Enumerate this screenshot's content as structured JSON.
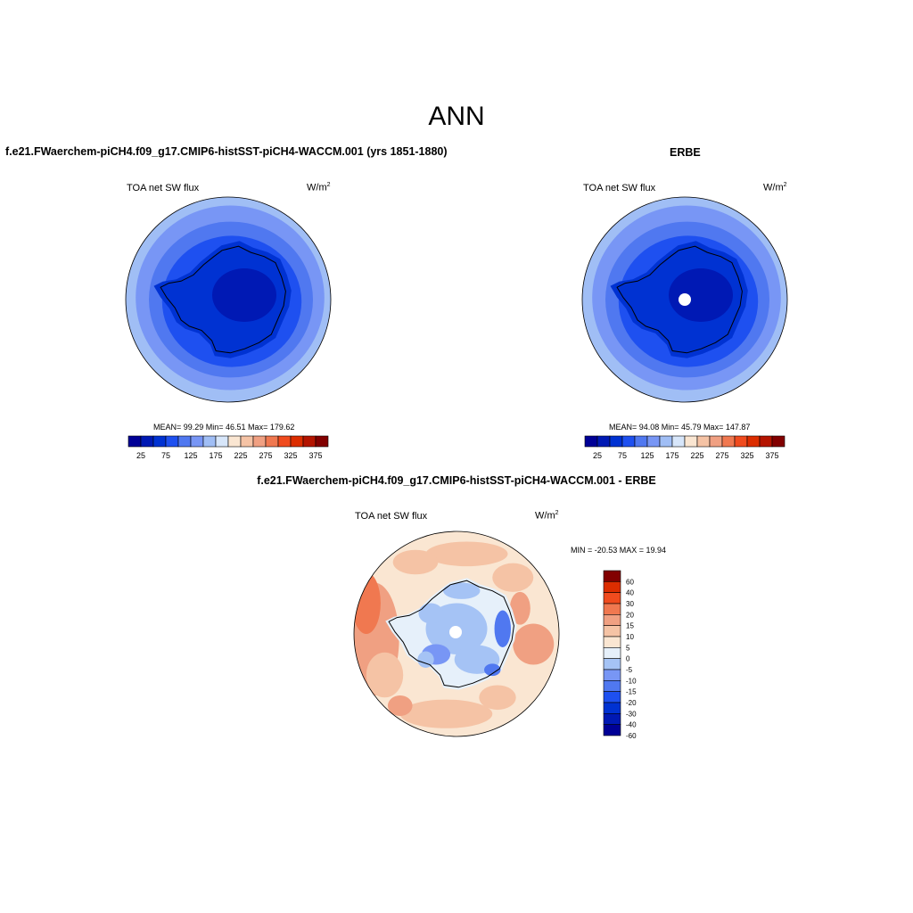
{
  "title": "ANN",
  "colors": {
    "continent_line": "#000000",
    "scale_abs": [
      "#000096",
      "#0019b4",
      "#0032d2",
      "#1e50f0",
      "#5078f0",
      "#7896f5",
      "#a0bef5",
      "#d7e6fa",
      "#fae6d2",
      "#f5c3a5",
      "#f0a082",
      "#f07850",
      "#f04b1e",
      "#dc2d00",
      "#b41400",
      "#820000"
    ],
    "scale_diff": [
      "#000096",
      "#0019b4",
      "#0032d2",
      "#1e50f0",
      "#5078f0",
      "#7896f5",
      "#a5c3f5",
      "#e6f0fa",
      "#fae6d2",
      "#f5c3a5",
      "#f0a082",
      "#f07850",
      "#f04b1e",
      "#dc2d00",
      "#820000"
    ]
  },
  "panels": {
    "model": {
      "title": "f.e21.FWaerchem-piCH4.f09_g17.CMIP6-histSST-piCH4-WACCM.001 (yrs 1851-1880)",
      "variable": "TOA net SW flux",
      "units": "W/m",
      "units_exp": "2",
      "stats": "MEAN=  99.29  Min=  46.51  Max= 179.62"
    },
    "obs": {
      "title": "ERBE",
      "variable": "TOA net SW flux",
      "units": "W/m",
      "units_exp": "2",
      "stats": "MEAN=  94.08  Min=  45.79  Max= 147.87"
    },
    "diff": {
      "title": "f.e21.FWaerchem-piCH4.f09_g17.CMIP6-histSST-piCH4-WACCM.001 - ERBE",
      "variable": "TOA net SW flux",
      "units": "W/m",
      "units_exp": "2",
      "stats": "MIN = -20.53 MAX =  19.94"
    }
  },
  "chart_data": [
    {
      "type": "heatmap",
      "projection": "south-polar-stereographic",
      "title": "f.e21.FWaerchem-piCH4.f09_g17.CMIP6-histSST-piCH4-WACCM.001 (yrs 1851-1880)",
      "variable": "TOA net SW flux",
      "units": "W/m2",
      "mean": 99.29,
      "min": 46.51,
      "max": 179.62,
      "colorbar_ticks": [
        "25",
        "75",
        "125",
        "175",
        "225",
        "275",
        "325",
        "375"
      ],
      "colorbar_orientation": "horizontal"
    },
    {
      "type": "heatmap",
      "projection": "south-polar-stereographic",
      "title": "ERBE",
      "variable": "TOA net SW flux",
      "units": "W/m2",
      "mean": 94.08,
      "min": 45.79,
      "max": 147.87,
      "colorbar_ticks": [
        "25",
        "75",
        "125",
        "175",
        "225",
        "275",
        "325",
        "375"
      ],
      "colorbar_orientation": "horizontal"
    },
    {
      "type": "heatmap",
      "projection": "south-polar-stereographic",
      "title": "f.e21.FWaerchem-piCH4.f09_g17.CMIP6-histSST-piCH4-WACCM.001 - ERBE",
      "variable": "TOA net SW flux",
      "units": "W/m2",
      "min": -20.53,
      "max": 19.94,
      "colorbar_ticks": [
        "60",
        "40",
        "30",
        "20",
        "15",
        "10",
        "5",
        "0",
        "-5",
        "-10",
        "-15",
        "-20",
        "-30",
        "-40",
        "-60"
      ],
      "colorbar_orientation": "vertical"
    }
  ]
}
